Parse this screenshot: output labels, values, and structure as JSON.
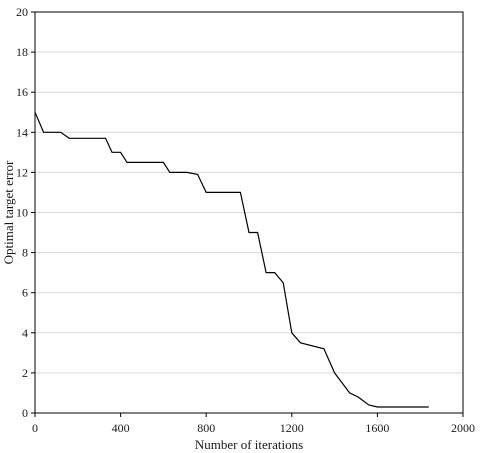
{
  "chart_data": {
    "type": "line",
    "title": "",
    "xlabel": "Number of iterations",
    "ylabel": "Optimal target error",
    "xlim": [
      0,
      2000
    ],
    "ylim": [
      0,
      20
    ],
    "x_ticks": [
      0,
      400,
      800,
      1200,
      1600,
      2000
    ],
    "y_ticks": [
      0,
      2,
      4,
      6,
      8,
      10,
      12,
      14,
      16,
      18,
      20
    ],
    "grid": "horizontal",
    "legend": "none",
    "series": [
      {
        "color": "#000000",
        "points": [
          [
            0,
            15.0
          ],
          [
            40,
            14.0
          ],
          [
            120,
            14.0
          ],
          [
            160,
            13.7
          ],
          [
            330,
            13.7
          ],
          [
            360,
            13.0
          ],
          [
            400,
            13.0
          ],
          [
            430,
            12.5
          ],
          [
            600,
            12.5
          ],
          [
            630,
            12.0
          ],
          [
            710,
            12.0
          ],
          [
            760,
            11.9
          ],
          [
            800,
            11.0
          ],
          [
            960,
            11.0
          ],
          [
            1000,
            9.0
          ],
          [
            1040,
            9.0
          ],
          [
            1080,
            7.0
          ],
          [
            1120,
            7.0
          ],
          [
            1160,
            6.5
          ],
          [
            1200,
            4.0
          ],
          [
            1240,
            3.5
          ],
          [
            1350,
            3.2
          ],
          [
            1400,
            2.0
          ],
          [
            1470,
            1.0
          ],
          [
            1510,
            0.8
          ],
          [
            1560,
            0.4
          ],
          [
            1600,
            0.3
          ],
          [
            1840,
            0.3
          ]
        ]
      }
    ]
  }
}
